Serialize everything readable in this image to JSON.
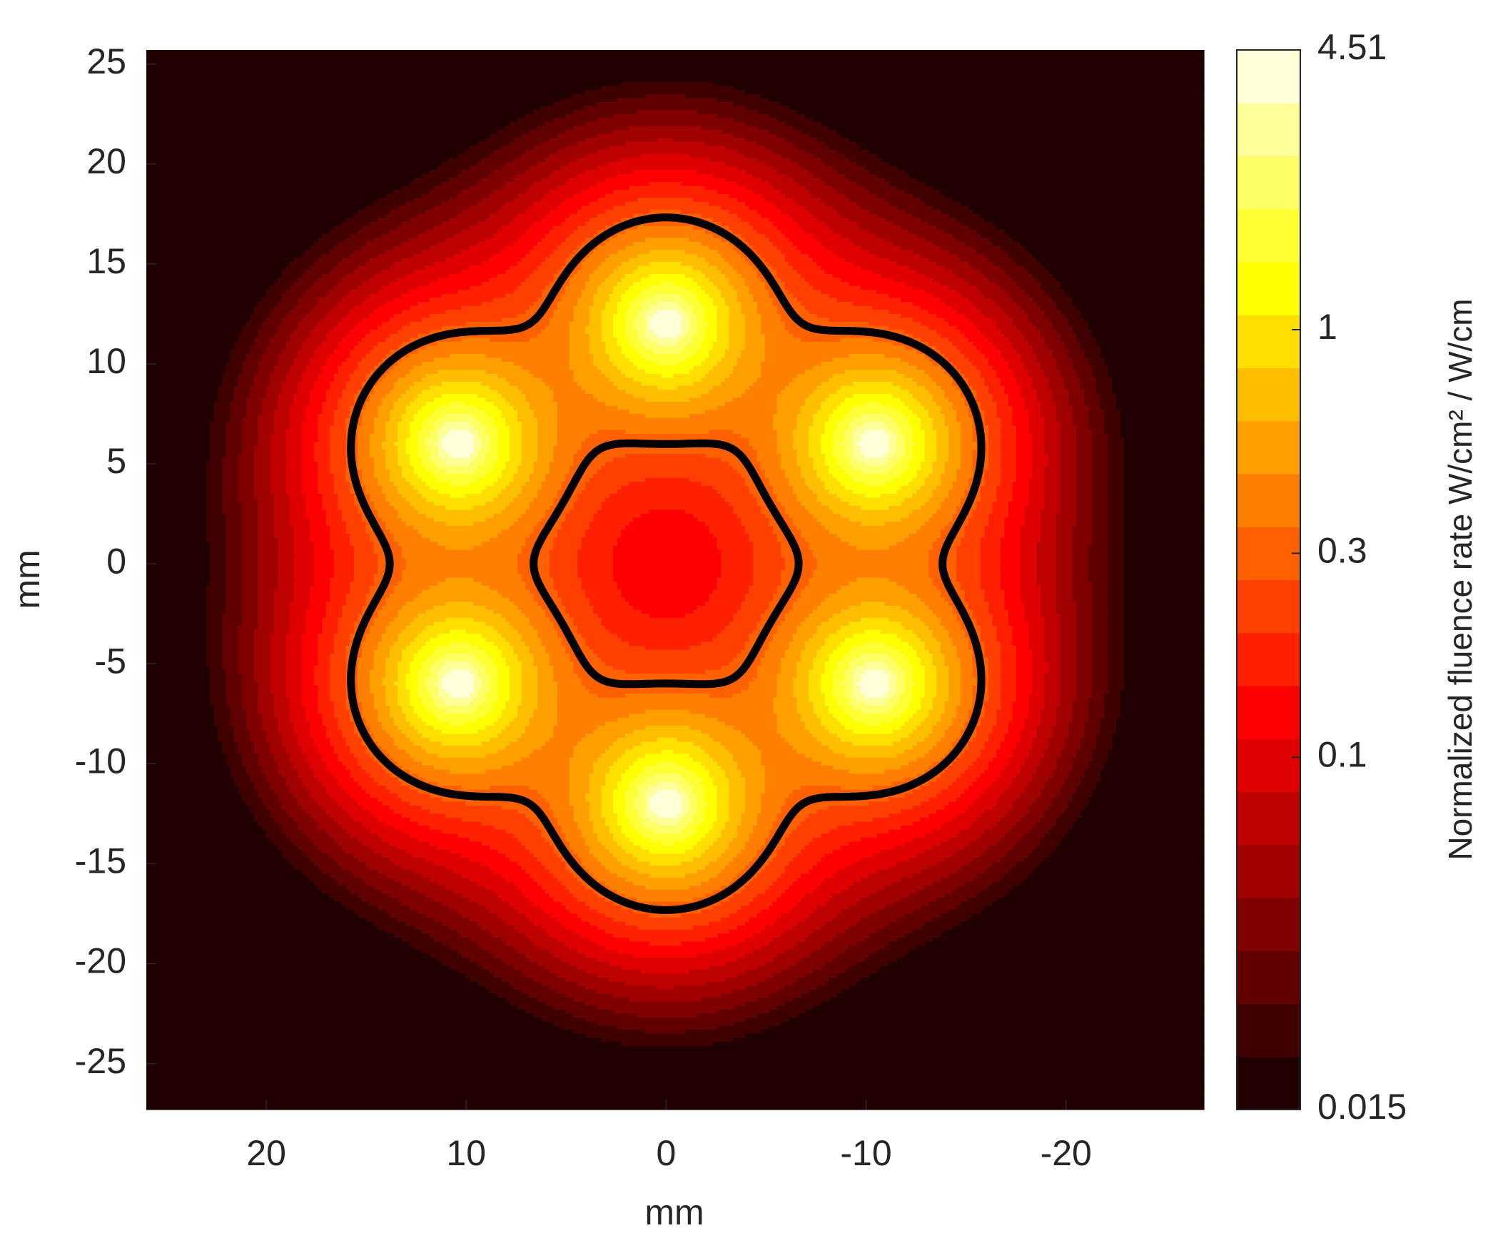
{
  "chart_data": {
    "type": "contour",
    "xlabel": "mm",
    "ylabel": "mm",
    "xlim": [
      26,
      -26.9
    ],
    "ylim": [
      -27.3,
      25.7
    ],
    "xticks": [
      20,
      10,
      0,
      -10,
      -20
    ],
    "yticks": [
      -25,
      -20,
      -15,
      -10,
      -5,
      0,
      5,
      10,
      15,
      20,
      25
    ],
    "sources": {
      "x": [
        0,
        10.4,
        10.4,
        0,
        -10.4,
        -10.4
      ],
      "y": [
        12,
        6,
        -6,
        -12,
        -6,
        6
      ]
    },
    "contour_level": 0.3,
    "contour_color": "#000000",
    "colorbar": {
      "label": "Normalized fluence rate W/cm² / W/cm",
      "scale": "log",
      "clim": [
        0.015,
        4.51
      ],
      "ticks": [
        0.015,
        0.1,
        0.3,
        1,
        4.51
      ],
      "colors": [
        "#200000",
        "#400000",
        "#600000",
        "#800000",
        "#9f0000",
        "#bf0000",
        "#df0000",
        "#ff0000",
        "#ff2000",
        "#ff4000",
        "#ff6000",
        "#ff8000",
        "#ff9f00",
        "#ffbf00",
        "#ffdf00",
        "#ffff00",
        "#ffff33",
        "#ffff66",
        "#ffff99",
        "#ffffd8"
      ]
    }
  }
}
